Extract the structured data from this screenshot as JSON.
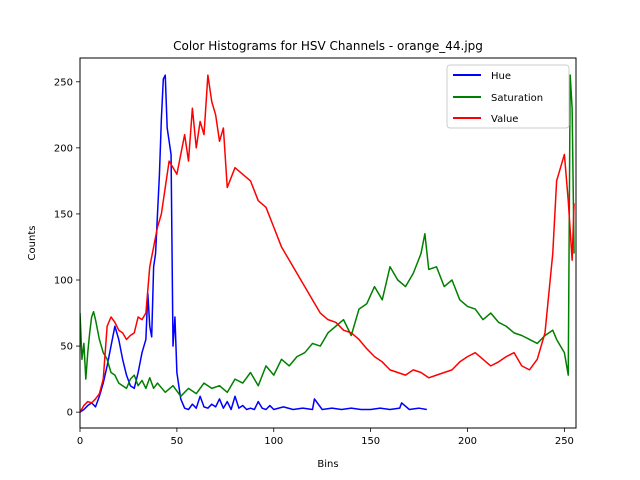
{
  "chart_data": {
    "type": "line",
    "title": "Color Histograms for HSV Channels - orange_44.jpg",
    "xlabel": "Bins",
    "ylabel": "Counts",
    "xlim": [
      0,
      256
    ],
    "ylim": [
      -12,
      268
    ],
    "xticks": [
      0,
      50,
      100,
      150,
      200,
      250
    ],
    "yticks": [
      0,
      50,
      100,
      150,
      200,
      250
    ],
    "grid": false,
    "legend_position": "top-right",
    "series": [
      {
        "name": "Hue",
        "color": "#0000ff",
        "x": [
          0,
          2,
          4,
          6,
          8,
          10,
          12,
          14,
          16,
          18,
          20,
          22,
          24,
          26,
          28,
          30,
          32,
          34,
          35,
          36,
          37,
          38,
          39,
          40,
          41,
          42,
          43,
          44,
          45,
          46,
          47,
          48,
          49,
          50,
          51,
          52,
          54,
          56,
          58,
          60,
          62,
          64,
          66,
          68,
          70,
          72,
          74,
          76,
          78,
          80,
          82,
          84,
          86,
          88,
          90,
          92,
          94,
          96,
          98,
          100,
          105,
          110,
          115,
          120,
          121,
          125,
          130,
          135,
          140,
          145,
          150,
          155,
          160,
          165,
          166,
          170,
          175,
          179
        ],
        "values": [
          0,
          2,
          5,
          7,
          4,
          12,
          22,
          35,
          50,
          65,
          55,
          40,
          28,
          20,
          18,
          30,
          45,
          55,
          90,
          65,
          57,
          110,
          120,
          150,
          180,
          222,
          252,
          255,
          215,
          205,
          195,
          50,
          72,
          30,
          20,
          10,
          3,
          2,
          6,
          3,
          12,
          4,
          3,
          6,
          4,
          10,
          3,
          8,
          2,
          12,
          3,
          5,
          2,
          3,
          2,
          8,
          3,
          2,
          5,
          2,
          4,
          2,
          3,
          2,
          10,
          2,
          3,
          2,
          3,
          2,
          2,
          3,
          2,
          3,
          7,
          2,
          3,
          2
        ]
      },
      {
        "name": "Saturation",
        "color": "#008000",
        "x": [
          0,
          1,
          2,
          3,
          4,
          5,
          6,
          7,
          8,
          10,
          12,
          14,
          16,
          18,
          20,
          22,
          24,
          26,
          28,
          30,
          32,
          34,
          36,
          38,
          40,
          44,
          48,
          52,
          56,
          60,
          64,
          68,
          72,
          76,
          80,
          84,
          88,
          92,
          96,
          100,
          104,
          108,
          112,
          116,
          120,
          124,
          128,
          132,
          136,
          140,
          144,
          148,
          152,
          156,
          160,
          164,
          168,
          172,
          176,
          178,
          180,
          184,
          188,
          192,
          196,
          200,
          204,
          208,
          212,
          216,
          220,
          224,
          228,
          232,
          236,
          240,
          242,
          244,
          246,
          248,
          250,
          252,
          253,
          254,
          255
        ],
        "values": [
          75,
          40,
          52,
          25,
          45,
          60,
          72,
          76,
          70,
          55,
          45,
          40,
          30,
          28,
          22,
          20,
          18,
          25,
          28,
          20,
          24,
          18,
          26,
          18,
          22,
          15,
          20,
          12,
          18,
          14,
          22,
          18,
          20,
          15,
          25,
          22,
          30,
          20,
          35,
          28,
          40,
          35,
          42,
          45,
          52,
          50,
          60,
          65,
          70,
          58,
          78,
          82,
          95,
          85,
          110,
          100,
          95,
          105,
          120,
          135,
          108,
          110,
          95,
          100,
          85,
          80,
          78,
          70,
          75,
          68,
          65,
          60,
          58,
          55,
          52,
          58,
          60,
          62,
          55,
          50,
          45,
          28,
          255,
          230,
          120
        ]
      },
      {
        "name": "Value",
        "color": "#ff0000",
        "x": [
          0,
          2,
          4,
          6,
          8,
          10,
          12,
          14,
          16,
          18,
          20,
          22,
          24,
          26,
          28,
          30,
          32,
          34,
          36,
          38,
          40,
          42,
          44,
          46,
          48,
          50,
          52,
          54,
          56,
          58,
          60,
          62,
          64,
          66,
          68,
          70,
          72,
          74,
          76,
          80,
          84,
          88,
          92,
          96,
          100,
          104,
          108,
          112,
          116,
          120,
          124,
          128,
          132,
          136,
          140,
          144,
          148,
          152,
          156,
          160,
          164,
          168,
          172,
          176,
          180,
          184,
          188,
          192,
          196,
          200,
          204,
          208,
          212,
          216,
          220,
          224,
          228,
          232,
          236,
          240,
          244,
          246,
          248,
          250,
          252,
          254,
          255
        ],
        "values": [
          0,
          5,
          8,
          7,
          10,
          14,
          25,
          65,
          72,
          68,
          62,
          60,
          55,
          58,
          60,
          72,
          70,
          75,
          110,
          125,
          140,
          150,
          170,
          190,
          185,
          180,
          195,
          210,
          190,
          230,
          200,
          220,
          210,
          255,
          235,
          225,
          205,
          215,
          170,
          185,
          180,
          175,
          160,
          155,
          140,
          125,
          115,
          105,
          95,
          85,
          75,
          70,
          68,
          62,
          60,
          55,
          48,
          42,
          38,
          32,
          30,
          28,
          32,
          30,
          26,
          28,
          30,
          32,
          38,
          42,
          45,
          40,
          35,
          38,
          42,
          45,
          35,
          32,
          40,
          60,
          120,
          175,
          185,
          195,
          160,
          115,
          158
        ]
      }
    ]
  }
}
